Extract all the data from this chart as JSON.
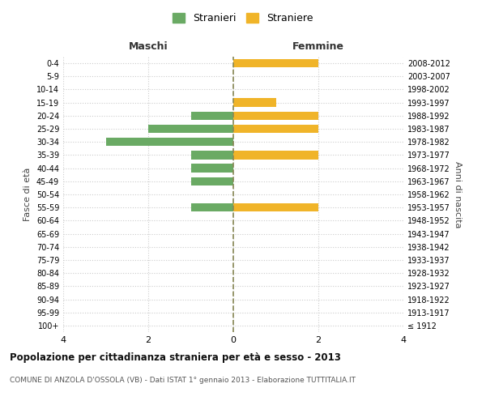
{
  "age_groups": [
    "100+",
    "95-99",
    "90-94",
    "85-89",
    "80-84",
    "75-79",
    "70-74",
    "65-69",
    "60-64",
    "55-59",
    "50-54",
    "45-49",
    "40-44",
    "35-39",
    "30-34",
    "25-29",
    "20-24",
    "15-19",
    "10-14",
    "5-9",
    "0-4"
  ],
  "birth_years": [
    "≤ 1912",
    "1913-1917",
    "1918-1922",
    "1923-1927",
    "1928-1932",
    "1933-1937",
    "1938-1942",
    "1943-1947",
    "1948-1952",
    "1953-1957",
    "1958-1962",
    "1963-1967",
    "1968-1972",
    "1973-1977",
    "1978-1982",
    "1983-1987",
    "1988-1992",
    "1993-1997",
    "1998-2002",
    "2003-2007",
    "2008-2012"
  ],
  "maschi": [
    0,
    0,
    0,
    0,
    0,
    0,
    0,
    0,
    0,
    1,
    0,
    1,
    1,
    1,
    3,
    2,
    1,
    0,
    0,
    0,
    0
  ],
  "femmine": [
    0,
    0,
    0,
    0,
    0,
    0,
    0,
    0,
    0,
    2,
    0,
    0,
    0,
    2,
    0,
    2,
    2,
    1,
    0,
    0,
    2
  ],
  "color_maschi": "#6aaa64",
  "color_femmine": "#f0b429",
  "xlim": 4,
  "title": "Popolazione per cittadinanza straniera per età e sesso - 2013",
  "subtitle": "COMUNE DI ANZOLA D'OSSOLA (VB) - Dati ISTAT 1° gennaio 2013 - Elaborazione TUTTITALIA.IT",
  "ylabel_left": "Fasce di età",
  "ylabel_right": "Anni di nascita",
  "label_maschi": "Maschi",
  "label_femmine": "Femmine",
  "legend_stranieri": "Stranieri",
  "legend_straniere": "Straniere",
  "background_color": "#ffffff",
  "grid_color": "#cccccc",
  "bar_height": 0.65
}
